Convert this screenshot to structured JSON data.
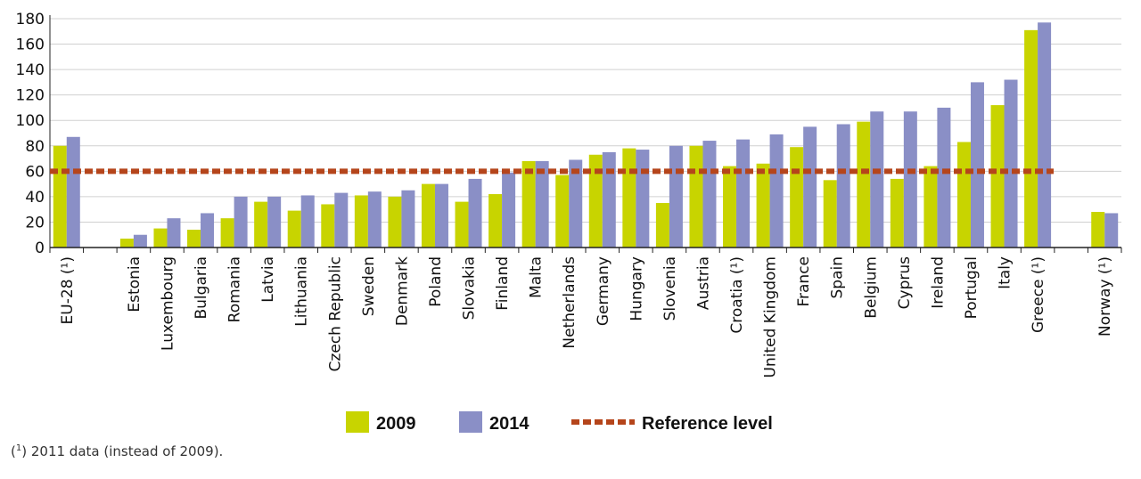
{
  "chart_data": {
    "type": "bar",
    "title": "",
    "xlabel": "",
    "ylabel": "",
    "ylim": [
      0,
      180
    ],
    "yticks": [
      "0",
      "20",
      "40",
      "60",
      "80",
      "100",
      "120",
      "140",
      "160",
      "180"
    ],
    "grid": "horizontal",
    "legend_position": "bottom-center",
    "categories": [
      "EU-28 (¹)",
      "",
      "Estonia",
      "Luxembourg",
      "Bulgaria",
      "Romania",
      "Latvia",
      "Lithuania",
      "Czech Republic",
      "Sweden",
      "Denmark",
      "Poland",
      "Slovakia",
      "Finland",
      "Malta",
      "Netherlands",
      "Germany",
      "Hungary",
      "Slovenia",
      "Austria",
      "Croatia (¹)",
      "United Kingdom",
      "France",
      "Spain",
      "Belgium",
      "Cyprus",
      "Ireland",
      "Portugal",
      "Italy",
      "Greece (¹)",
      "",
      "Norway (¹)"
    ],
    "series": [
      {
        "name": "2009",
        "color": "#c8d400",
        "values": [
          80,
          null,
          7,
          15,
          14,
          23,
          36,
          29,
          34,
          41,
          40,
          50,
          36,
          42,
          68,
          57,
          73,
          78,
          35,
          80,
          64,
          66,
          79,
          53,
          99,
          54,
          64,
          83,
          112,
          171,
          null,
          28
        ]
      },
      {
        "name": "2014",
        "color": "#8a8fc6",
        "values": [
          87,
          null,
          10,
          23,
          27,
          40,
          40,
          41,
          43,
          44,
          45,
          50,
          54,
          59,
          68,
          69,
          75,
          77,
          80,
          84,
          85,
          89,
          95,
          97,
          107,
          107,
          110,
          130,
          132,
          177,
          null,
          27
        ]
      }
    ],
    "reference_line": {
      "name": "Reference level",
      "value": 60,
      "color": "#b5451b",
      "style": "dashed"
    }
  },
  "footnote": {
    "marker": "1",
    "text": " 2011 data (instead of 2009)."
  }
}
